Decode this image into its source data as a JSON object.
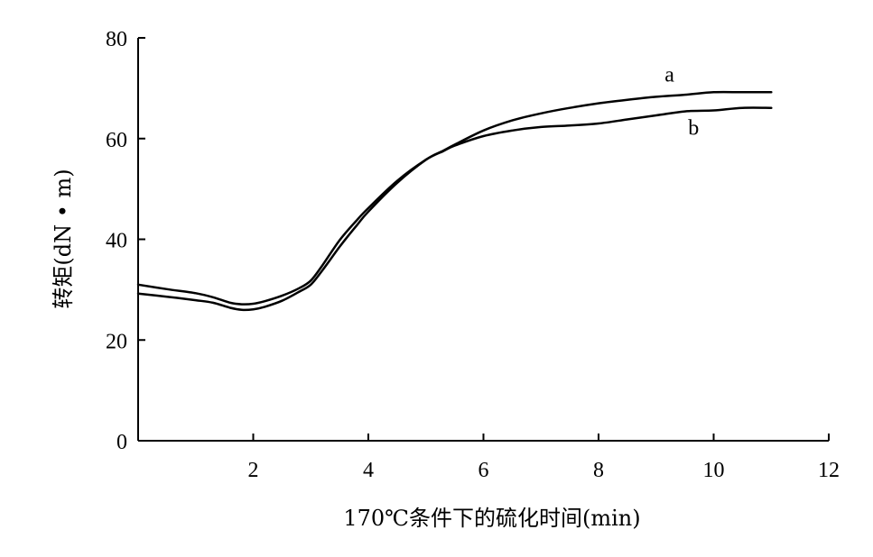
{
  "chart_data": {
    "type": "line",
    "xlabel": "170℃条件下的硫化时间(min)",
    "ylabel": "转矩(dN • m)",
    "xlim": [
      0,
      12
    ],
    "ylim": [
      0,
      80
    ],
    "x_ticks": [
      {
        "value": 2,
        "label": "2"
      },
      {
        "value": 4,
        "label": "4"
      },
      {
        "value": 6,
        "label": "6"
      },
      {
        "value": 8,
        "label": "8"
      },
      {
        "value": 10,
        "label": "10"
      },
      {
        "value": 12,
        "label": "12"
      }
    ],
    "y_ticks": [
      {
        "value": 0,
        "label": "0"
      },
      {
        "value": 20,
        "label": "20"
      },
      {
        "value": 40,
        "label": "40"
      },
      {
        "value": 60,
        "label": "60"
      },
      {
        "value": 80,
        "label": "80"
      }
    ],
    "grid": false,
    "series": [
      {
        "name": "a",
        "color": "#000000",
        "x": [
          0,
          0.5,
          1.0,
          1.3,
          1.6,
          1.8,
          2.0,
          2.2,
          2.5,
          2.8,
          3.0,
          3.2,
          3.5,
          3.8,
          4.0,
          4.5,
          5.0,
          5.3,
          5.5,
          6.0,
          6.5,
          7.0,
          7.5,
          8.0,
          8.5,
          9.0,
          9.5,
          10.0,
          10.5,
          11.0
        ],
        "y": [
          29.2,
          28.6,
          27.9,
          27.4,
          26.4,
          26.0,
          26.1,
          26.6,
          27.8,
          29.6,
          31.0,
          33.8,
          38.5,
          42.8,
          45.5,
          51.2,
          55.8,
          57.6,
          58.8,
          61.6,
          63.6,
          65.0,
          66.1,
          67.0,
          67.7,
          68.3,
          68.7,
          69.2,
          69.2,
          69.2
        ]
      },
      {
        "name": "b",
        "color": "#000000",
        "x": [
          0,
          0.5,
          1.0,
          1.3,
          1.6,
          1.8,
          2.0,
          2.2,
          2.5,
          2.8,
          3.0,
          3.2,
          3.5,
          3.8,
          4.0,
          4.5,
          5.0,
          5.3,
          5.5,
          6.0,
          6.5,
          7.0,
          7.5,
          8.0,
          8.5,
          9.0,
          9.5,
          10.0,
          10.5,
          11.0
        ],
        "y": [
          31.0,
          30.1,
          29.3,
          28.5,
          27.4,
          27.1,
          27.2,
          27.7,
          28.8,
          30.3,
          31.8,
          34.8,
          39.8,
          43.8,
          46.2,
          51.6,
          55.8,
          57.5,
          58.6,
          60.5,
          61.6,
          62.3,
          62.6,
          63.0,
          63.8,
          64.6,
          65.4,
          65.6,
          66.1,
          66.1
        ]
      }
    ]
  }
}
